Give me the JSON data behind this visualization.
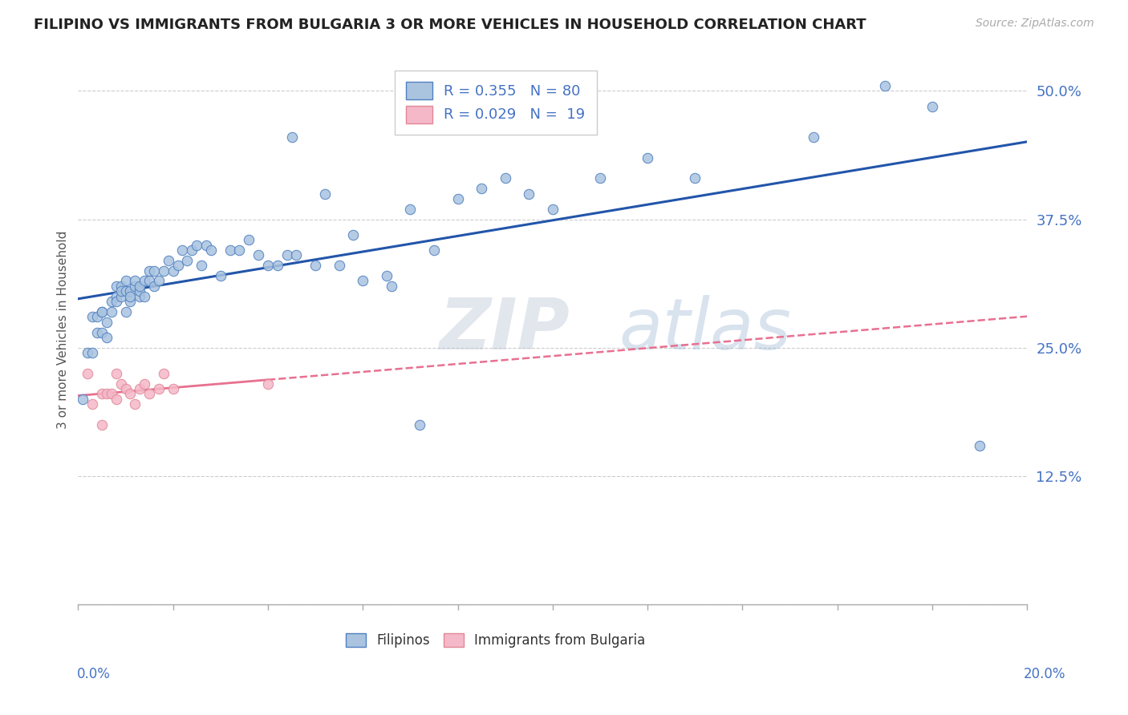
{
  "title": "FILIPINO VS IMMIGRANTS FROM BULGARIA 3 OR MORE VEHICLES IN HOUSEHOLD CORRELATION CHART",
  "source": "Source: ZipAtlas.com",
  "ylabel": "3 or more Vehicles in Household",
  "ytick_vals": [
    0.0,
    0.125,
    0.25,
    0.375,
    0.5
  ],
  "ytick_labels": [
    "",
    "12.5%",
    "25.0%",
    "37.5%",
    "50.0%"
  ],
  "xlim": [
    0.0,
    0.2
  ],
  "ylim": [
    0.0,
    0.535
  ],
  "label_color": "#4472c4",
  "filipino_face": "#aac4e0",
  "filipino_edge": "#5080c0",
  "bulgarian_face": "#f5b8c8",
  "bulgarian_edge": "#e08898",
  "line_fil_color": "#2255aa",
  "line_bul_color": "#e87090",
  "filipinos_x": [
    0.001,
    0.002,
    0.003,
    0.003,
    0.004,
    0.004,
    0.005,
    0.005,
    0.005,
    0.006,
    0.006,
    0.007,
    0.007,
    0.008,
    0.008,
    0.008,
    0.009,
    0.009,
    0.009,
    0.01,
    0.01,
    0.01,
    0.011,
    0.011,
    0.011,
    0.012,
    0.012,
    0.013,
    0.013,
    0.013,
    0.014,
    0.014,
    0.015,
    0.015,
    0.016,
    0.016,
    0.017,
    0.018,
    0.019,
    0.02,
    0.021,
    0.022,
    0.023,
    0.024,
    0.025,
    0.026,
    0.027,
    0.028,
    0.03,
    0.032,
    0.034,
    0.036,
    0.038,
    0.04,
    0.042,
    0.044,
    0.046,
    0.05,
    0.055,
    0.06,
    0.065,
    0.07,
    0.075,
    0.08,
    0.085,
    0.09,
    0.095,
    0.1,
    0.11,
    0.12,
    0.13,
    0.155,
    0.17,
    0.18,
    0.19,
    0.045,
    0.052,
    0.058,
    0.066,
    0.072
  ],
  "filipinos_y": [
    0.2,
    0.245,
    0.28,
    0.245,
    0.28,
    0.265,
    0.265,
    0.285,
    0.285,
    0.26,
    0.275,
    0.285,
    0.295,
    0.3,
    0.31,
    0.295,
    0.3,
    0.31,
    0.305,
    0.285,
    0.305,
    0.315,
    0.295,
    0.305,
    0.3,
    0.31,
    0.315,
    0.3,
    0.305,
    0.31,
    0.315,
    0.3,
    0.315,
    0.325,
    0.31,
    0.325,
    0.315,
    0.325,
    0.335,
    0.325,
    0.33,
    0.345,
    0.335,
    0.345,
    0.35,
    0.33,
    0.35,
    0.345,
    0.32,
    0.345,
    0.345,
    0.355,
    0.34,
    0.33,
    0.33,
    0.34,
    0.34,
    0.33,
    0.33,
    0.315,
    0.32,
    0.385,
    0.345,
    0.395,
    0.405,
    0.415,
    0.4,
    0.385,
    0.415,
    0.435,
    0.415,
    0.455,
    0.505,
    0.485,
    0.155,
    0.455,
    0.4,
    0.36,
    0.31,
    0.175
  ],
  "bulgarians_x": [
    0.002,
    0.003,
    0.005,
    0.005,
    0.006,
    0.007,
    0.008,
    0.008,
    0.009,
    0.01,
    0.011,
    0.012,
    0.013,
    0.014,
    0.015,
    0.017,
    0.018,
    0.02,
    0.04
  ],
  "bulgarians_y": [
    0.225,
    0.195,
    0.205,
    0.175,
    0.205,
    0.205,
    0.225,
    0.2,
    0.215,
    0.21,
    0.205,
    0.195,
    0.21,
    0.215,
    0.205,
    0.21,
    0.225,
    0.21,
    0.215
  ]
}
